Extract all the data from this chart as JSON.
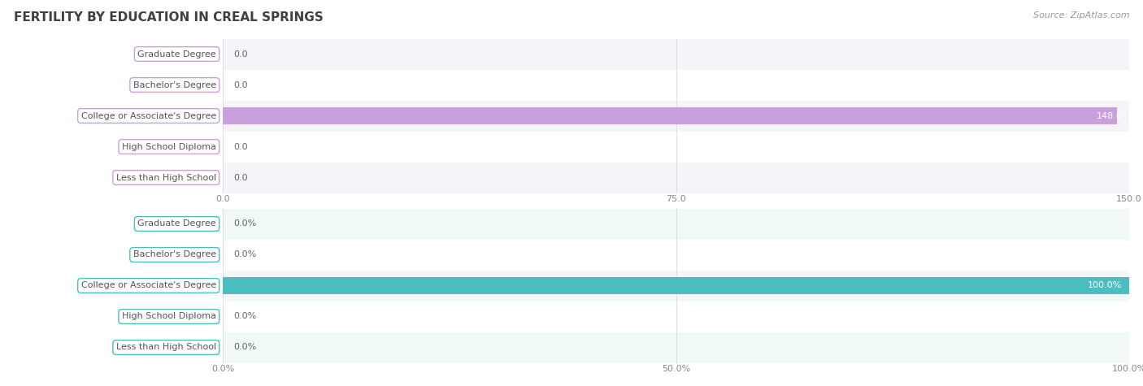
{
  "title": "FERTILITY BY EDUCATION IN CREAL SPRINGS",
  "source": "Source: ZipAtlas.com",
  "categories": [
    "Less than High School",
    "High School Diploma",
    "College or Associate's Degree",
    "Bachelor's Degree",
    "Graduate Degree"
  ],
  "values_abs": [
    0.0,
    0.0,
    148.0,
    0.0,
    0.0
  ],
  "values_pct": [
    0.0,
    0.0,
    100.0,
    0.0,
    0.0
  ],
  "xlim_abs": [
    0.0,
    150.0
  ],
  "xlim_pct": [
    0.0,
    100.0
  ],
  "xticks_abs": [
    0.0,
    75.0,
    150.0
  ],
  "xticks_pct": [
    0.0,
    50.0,
    100.0
  ],
  "xtick_labels_abs": [
    "0.0",
    "75.0",
    "150.0"
  ],
  "xtick_labels_pct": [
    "0.0%",
    "50.0%",
    "100.0%"
  ],
  "bar_color_purple": "#c9a0dc",
  "bar_color_teal": "#4bbfbf",
  "label_text_color": "#555555",
  "bar_text_color_white": "#ffffff",
  "bar_text_color_dark": "#666666",
  "title_color": "#404040",
  "source_color": "#999999",
  "grid_color": "#dddddd",
  "row_bg_purple_odd": "#f5f4f9",
  "row_bg_purple_even": "#ffffff",
  "row_bg_teal_odd": "#f0f8f8",
  "row_bg_teal_even": "#ffffff",
  "title_fontsize": 11,
  "label_fontsize": 8,
  "value_fontsize": 8,
  "tick_fontsize": 8,
  "source_fontsize": 8
}
